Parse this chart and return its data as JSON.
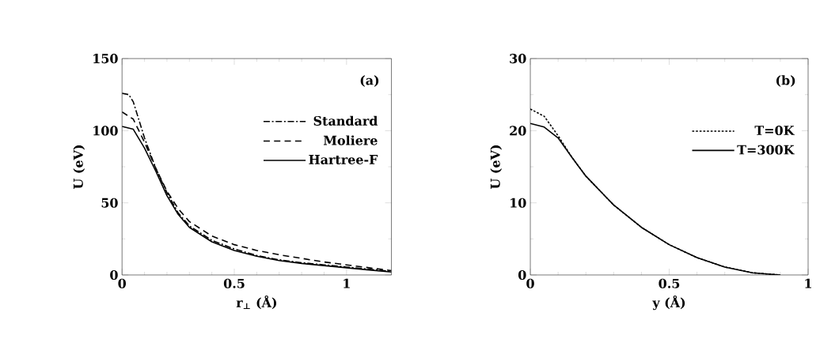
{
  "chart_data": [
    {
      "type": "line",
      "xlabel": "r$_{⊥}$ (Å)",
      "ylabel": "U (eV)",
      "annotations": [
        "(a)"
      ],
      "xlim": [
        0,
        1.2
      ],
      "ylim": [
        0,
        150
      ],
      "xticks": [
        0,
        0.5,
        1
      ],
      "yticks": [
        0,
        50,
        100,
        150
      ],
      "legend": "right",
      "grid": false,
      "series": [
        {
          "name": "Standard",
          "color": "#000000",
          "line_style": "dashdot",
          "x": [
            0,
            0.03,
            0.05,
            0.1,
            0.15,
            0.2,
            0.25,
            0.3,
            0.4,
            0.5,
            0.6,
            0.7,
            0.8,
            0.9,
            1.0,
            1.1,
            1.2
          ],
          "values": [
            126,
            125,
            120,
            95,
            74,
            57,
            43,
            34,
            24,
            18,
            13.5,
            10.5,
            8.5,
            7,
            5.5,
            4,
            2.5
          ]
        },
        {
          "name": "Moliere",
          "color": "#000000",
          "line_style": "dashed",
          "x": [
            0,
            0.05,
            0.1,
            0.15,
            0.2,
            0.25,
            0.3,
            0.4,
            0.5,
            0.6,
            0.7,
            0.8,
            0.9,
            1.0,
            1.1,
            1.2
          ],
          "values": [
            113,
            108,
            92,
            74,
            58,
            46,
            37,
            27,
            21,
            17,
            14,
            11.5,
            9,
            7,
            5,
            3
          ]
        },
        {
          "name": "Hartree-F",
          "color": "#000000",
          "line_style": "solid",
          "x": [
            0,
            0.05,
            0.1,
            0.15,
            0.2,
            0.25,
            0.3,
            0.4,
            0.5,
            0.6,
            0.7,
            0.8,
            0.9,
            1.0,
            1.1,
            1.2
          ],
          "values": [
            103,
            101,
            88,
            72,
            55,
            42,
            33,
            23,
            17,
            13,
            10,
            8,
            6.5,
            5,
            3.5,
            2
          ]
        }
      ]
    },
    {
      "type": "line",
      "xlabel": "y (Å)",
      "ylabel": "U (eV)",
      "annotations": [
        "(b)"
      ],
      "xlim": [
        0,
        1
      ],
      "ylim": [
        0,
        30
      ],
      "xticks": [
        0,
        0.5,
        1
      ],
      "yticks": [
        0,
        10,
        20,
        30
      ],
      "legend": "right",
      "grid": false,
      "series": [
        {
          "name": "T=0K",
          "color": "#000000",
          "line_style": "dotted",
          "x": [
            0,
            0.05,
            0.1,
            0.15,
            0.2,
            0.3,
            0.4,
            0.5,
            0.6,
            0.7,
            0.8,
            0.9
          ],
          "values": [
            23,
            22,
            19.3,
            16.3,
            13.7,
            9.7,
            6.6,
            4.2,
            2.4,
            1.1,
            0.3,
            0
          ]
        },
        {
          "name": "T=300K",
          "color": "#000000",
          "line_style": "solid",
          "x": [
            0,
            0.05,
            0.1,
            0.15,
            0.2,
            0.3,
            0.4,
            0.5,
            0.6,
            0.7,
            0.8,
            0.9
          ],
          "values": [
            21,
            20.5,
            19,
            16.3,
            13.7,
            9.7,
            6.6,
            4.2,
            2.4,
            1.1,
            0.3,
            0
          ]
        }
      ]
    }
  ]
}
